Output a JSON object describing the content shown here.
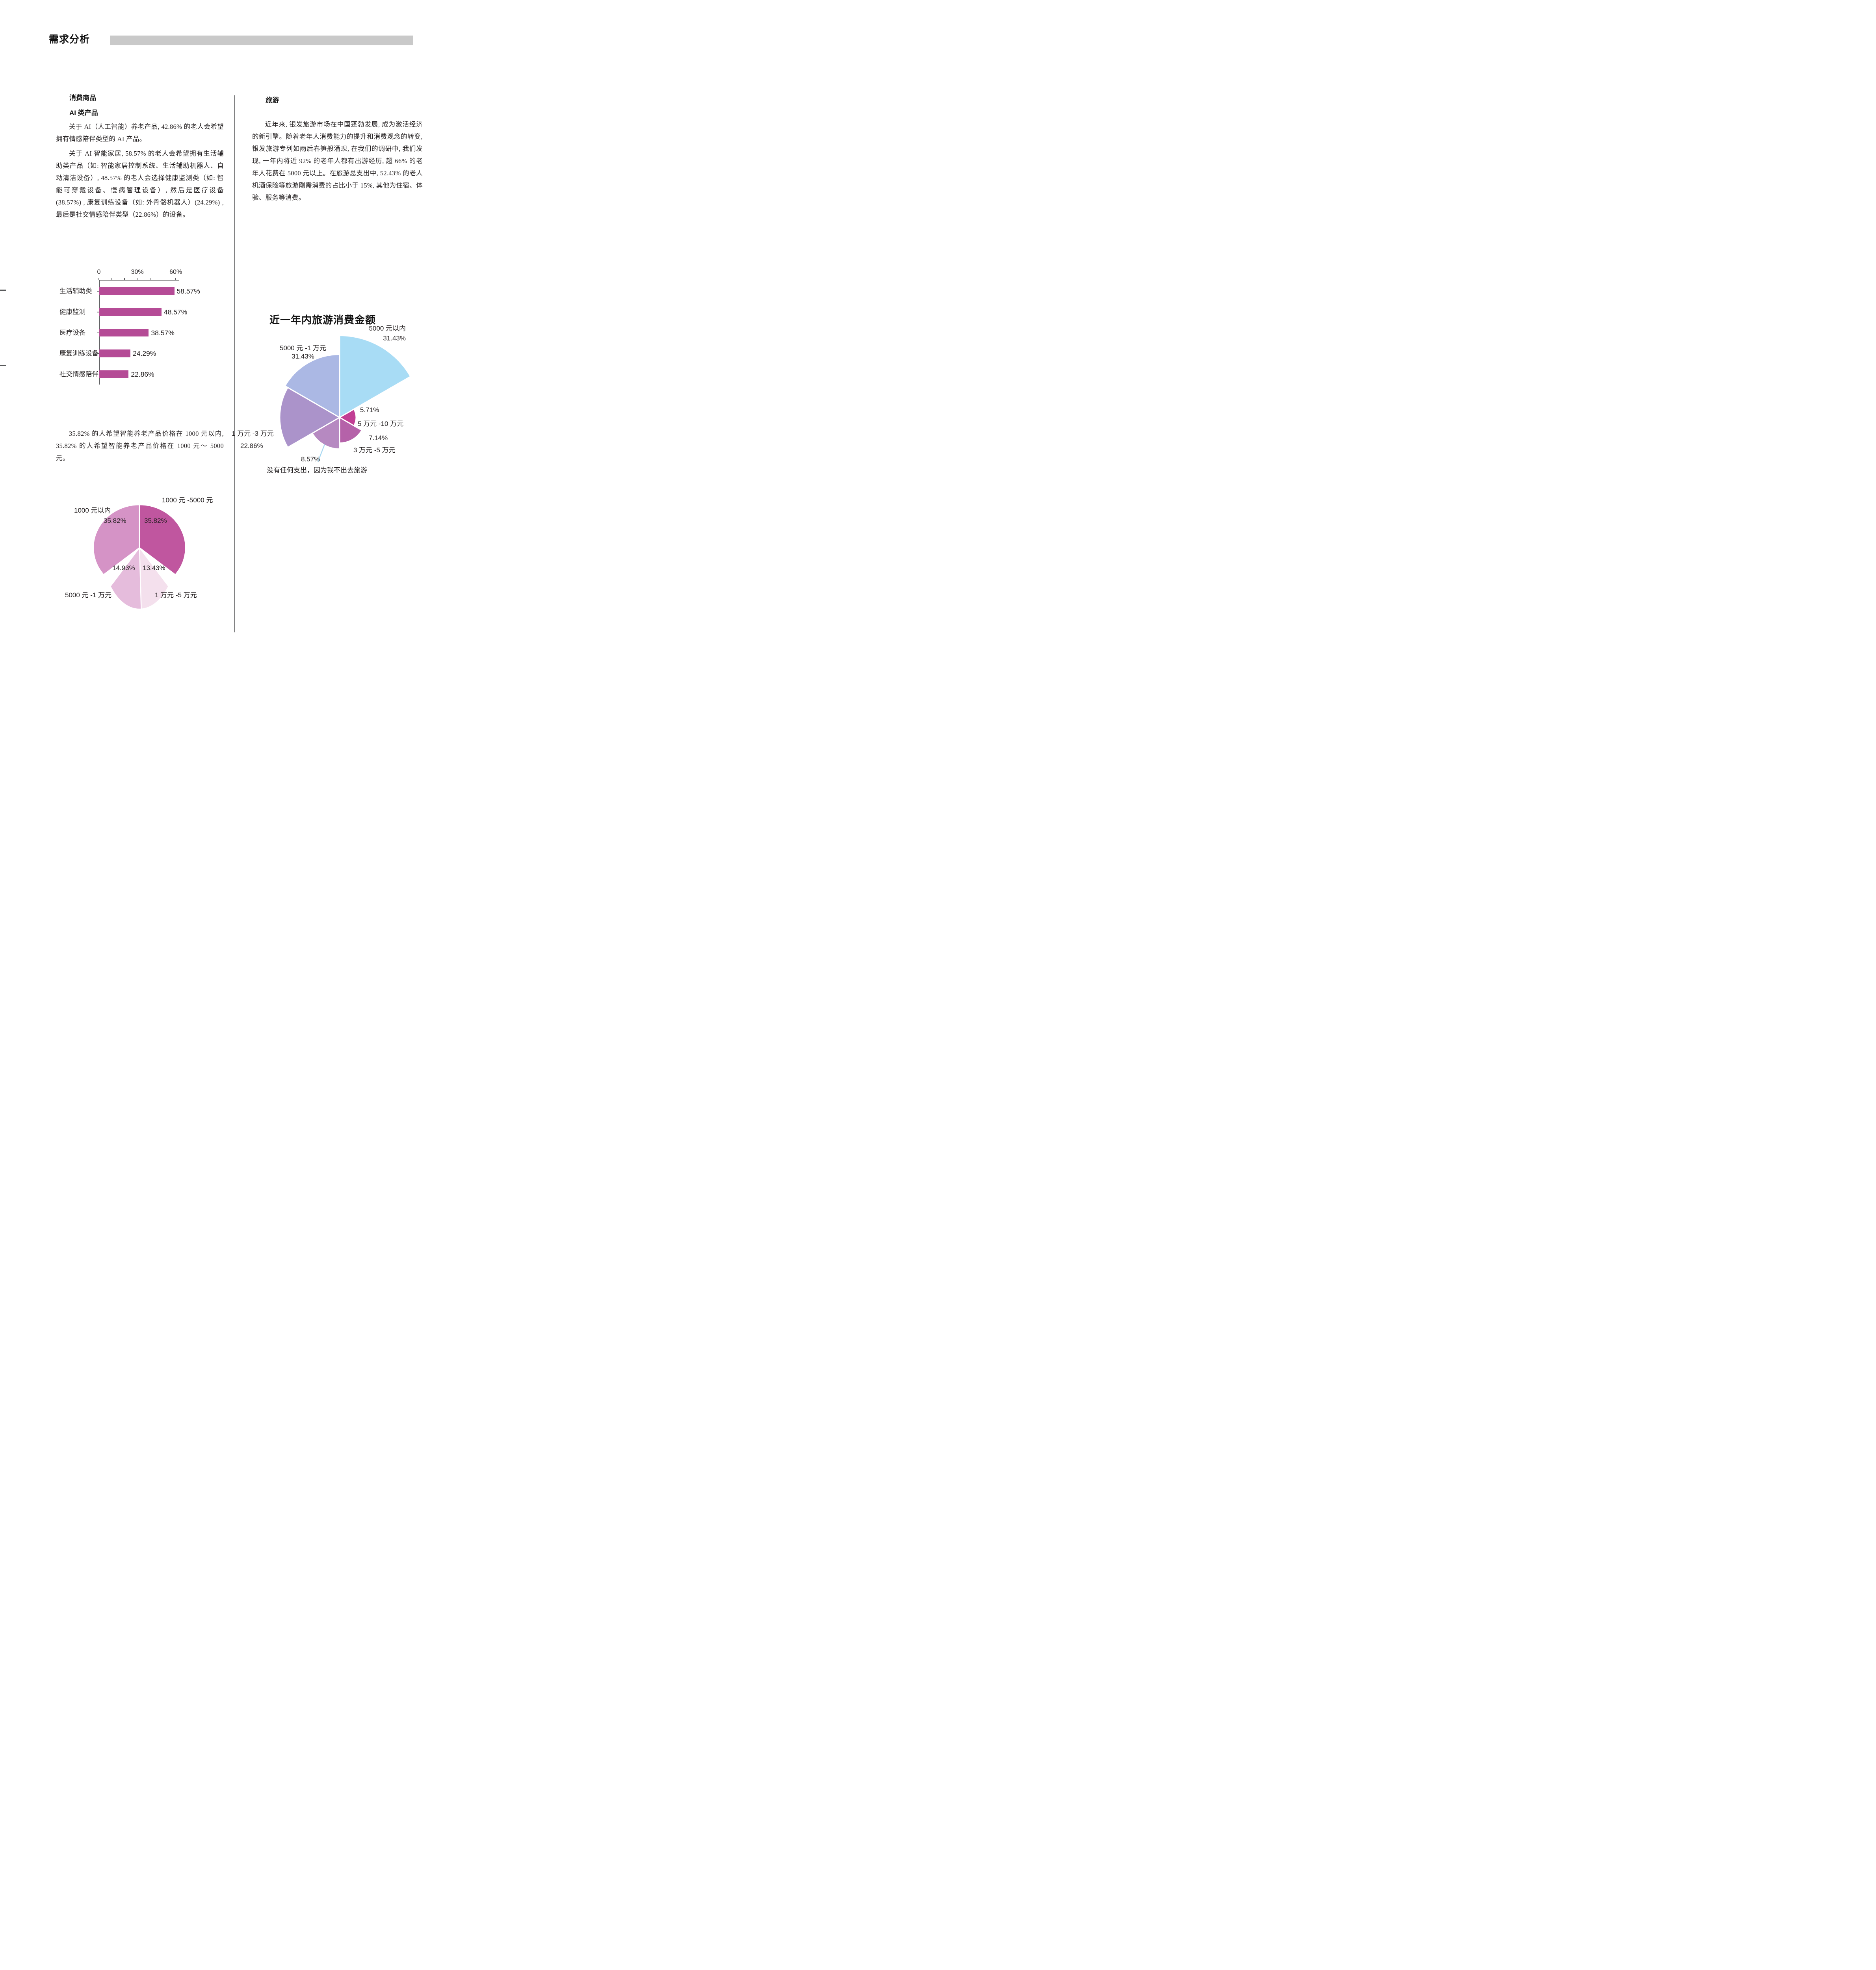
{
  "page": {
    "header": {
      "title": "需求分析"
    }
  },
  "left_column": {
    "section_title": "消费商品",
    "subsection_title": "AI 类产品",
    "para1": "关于 AI（人工智能）养老产品, 42.86% 的老人会希望拥有情感陪伴类型的 AI 产品。",
    "para2": "关于 AI 智能家居, 58.57% 的老人会希望拥有生活辅助类产品（如: 智能家居控制系统、生活辅助机器人、自动清洁设备）, 48.57% 的老人会选择健康监测类（如: 智能可穿戴设备、慢病管理设备）, 然后是医疗设备 (38.57%) , 康复训练设备（如: 外骨骼机器人）(24.29%) , 最后是社交情感陪伴类型（22.86%）的设备。",
    "para3": "35.82% 的人希望智能养老产品价格在 1000 元以内, 35.82% 的人希望智能养老产品价格在 1000 元～ 5000 元。"
  },
  "right_column": {
    "section_title": "旅游",
    "para1": "近年来, 银发旅游市场在中国蓬勃发展, 成为激活经济的新引擎。随着老年人消费能力的提升和消费观念的转变, 银发旅游专列如雨后春笋般涌现, 在我们的调研中, 我们发现, 一年内将近 92% 的老年人都有出游经历, 超 66% 的老年人花费在 5000 元以上。在旅游总支出中, 52.43% 的老人机酒保险等旅游刚需消费的占比小于 15%, 其他为住宿、体验、服务等消费。"
  },
  "chart_data": [
    {
      "type": "bar",
      "orientation": "horizontal",
      "title": "",
      "categories": [
        "生活辅助类",
        "健康监测",
        "医疗设备",
        "康复训练设备",
        "社交情感陪伴"
      ],
      "values": [
        58.57,
        48.57,
        38.57,
        24.29,
        22.86
      ],
      "value_labels": [
        "58.57%",
        "48.57%",
        "38.57%",
        "24.29%",
        "22.86%"
      ],
      "bar_color": "#b54b96",
      "axis": {
        "min": 0,
        "max": 60,
        "tick_step": 10,
        "tick_labels": [
          "0",
          "30%",
          "60%"
        ],
        "grid": false
      }
    },
    {
      "type": "rose",
      "title": "近一年内旅游消费金额",
      "legend_position": "none",
      "slices": [
        {
          "label": "5000 元以内",
          "pct": "31.43%",
          "value": 31.43,
          "color": "#a8dcf5",
          "radius": 208
        },
        {
          "label": "5 万元 -10 万元",
          "pct": "5.71%",
          "value": 5.71,
          "color": "#c23e94",
          "radius": 42
        },
        {
          "label": "3 万元 -5 万元",
          "pct": "7.14%",
          "value": 7.14,
          "color": "#b562a9",
          "radius": 65
        },
        {
          "label": "没有任何支出，因为我不出去旅游",
          "pct": "8.57%",
          "value": 8.57,
          "color": "#b689c1",
          "radius": 80
        },
        {
          "label": "1 万元 -3 万元",
          "pct": "22.86%",
          "value": 22.86,
          "color": "#ab93ca",
          "radius": 152
        },
        {
          "label": "5000 元 -1 万元",
          "pct": "31.43%",
          "value": 31.43,
          "color": "#abb8e4",
          "radius": 160
        }
      ],
      "callout_color": "#a9d9f2"
    },
    {
      "type": "pie",
      "title": "",
      "slices": [
        {
          "label": "1000 元 -5000 元",
          "pct": "35.82%",
          "value": 35.82,
          "color": "#c0569f"
        },
        {
          "label": "1 万元 -5 万元",
          "pct": "13.43%",
          "value": 13.43,
          "color": "#f4e0ed"
        },
        {
          "label": "5000 元 -1 万元",
          "pct": "14.93%",
          "value": 14.93,
          "color": "#e5bcdc"
        },
        {
          "label": "1000 元以内",
          "pct": "35.82%",
          "value": 35.82,
          "color": "#d593c6"
        }
      ]
    }
  ]
}
